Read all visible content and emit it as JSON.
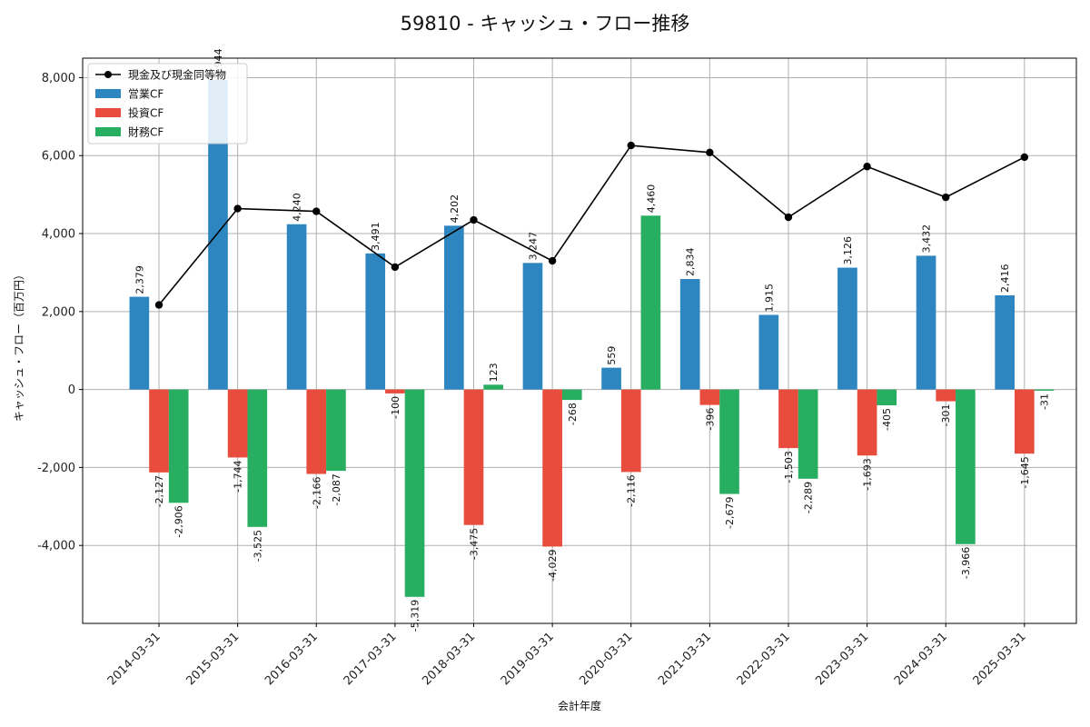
{
  "chart_data": {
    "type": "bar",
    "title": "59810 - キャッシュ・フロー推移",
    "xlabel": "会計年度",
    "ylabel": "キャッシュ・フロー（百万円）",
    "ylim": [
      -6000,
      8500
    ],
    "yticks": [
      -4000,
      -2000,
      0,
      2000,
      4000,
      6000,
      8000
    ],
    "ytick_labels": [
      "-4,000",
      "-2,000",
      "0",
      "2,000",
      "4,000",
      "6,000",
      "8,000"
    ],
    "grid": true,
    "legend_position": "top-left",
    "categories": [
      "2014-03-31",
      "2015-03-31",
      "2016-03-31",
      "2017-03-31",
      "2018-03-31",
      "2019-03-31",
      "2020-03-31",
      "2021-03-31",
      "2022-03-31",
      "2023-03-31",
      "2024-03-31",
      "2025-03-31"
    ],
    "series": [
      {
        "name": "営業CF",
        "kind": "bar",
        "color": "#2e86c1",
        "values": [
          2379,
          7944,
          4240,
          3491,
          4202,
          3247,
          559,
          2834,
          1915,
          3126,
          3432,
          2416
        ],
        "labels": [
          "2,379",
          "7,944",
          "4,240",
          "3,491",
          "4,202",
          "3,247",
          "559",
          "2,834",
          "1,915",
          "3,126",
          "3,432",
          "2,416"
        ]
      },
      {
        "name": "投資CF",
        "kind": "bar",
        "color": "#e74c3c",
        "values": [
          -2127,
          -1744,
          -2166,
          -100,
          -3475,
          -4029,
          -2116,
          -396,
          -1503,
          -1693,
          -301,
          -1645
        ],
        "labels": [
          "-2,127",
          "-1,744",
          "-2,166",
          "-100",
          "-3,475",
          "-4,029",
          "-2,116",
          "-396",
          "-1,503",
          "-1,693",
          "-301",
          "-1,645"
        ]
      },
      {
        "name": "財務CF",
        "kind": "bar",
        "color": "#27ae60",
        "values": [
          -2906,
          -3525,
          -2087,
          -5319,
          123,
          -268,
          4460,
          -2679,
          -2289,
          -405,
          -3966,
          -31
        ],
        "labels": [
          "-2,906",
          "-3,525",
          "-2,087",
          "-5,319",
          "123",
          "-268",
          "4,460",
          "-2,679",
          "-2,289",
          "-405",
          "-3,966",
          "-31"
        ]
      },
      {
        "name": "現金及び現金同等物",
        "kind": "line",
        "color": "#000000",
        "values": [
          2170,
          4640,
          4570,
          3140,
          4350,
          3300,
          6260,
          6080,
          4420,
          5720,
          4930,
          5960
        ]
      }
    ]
  }
}
